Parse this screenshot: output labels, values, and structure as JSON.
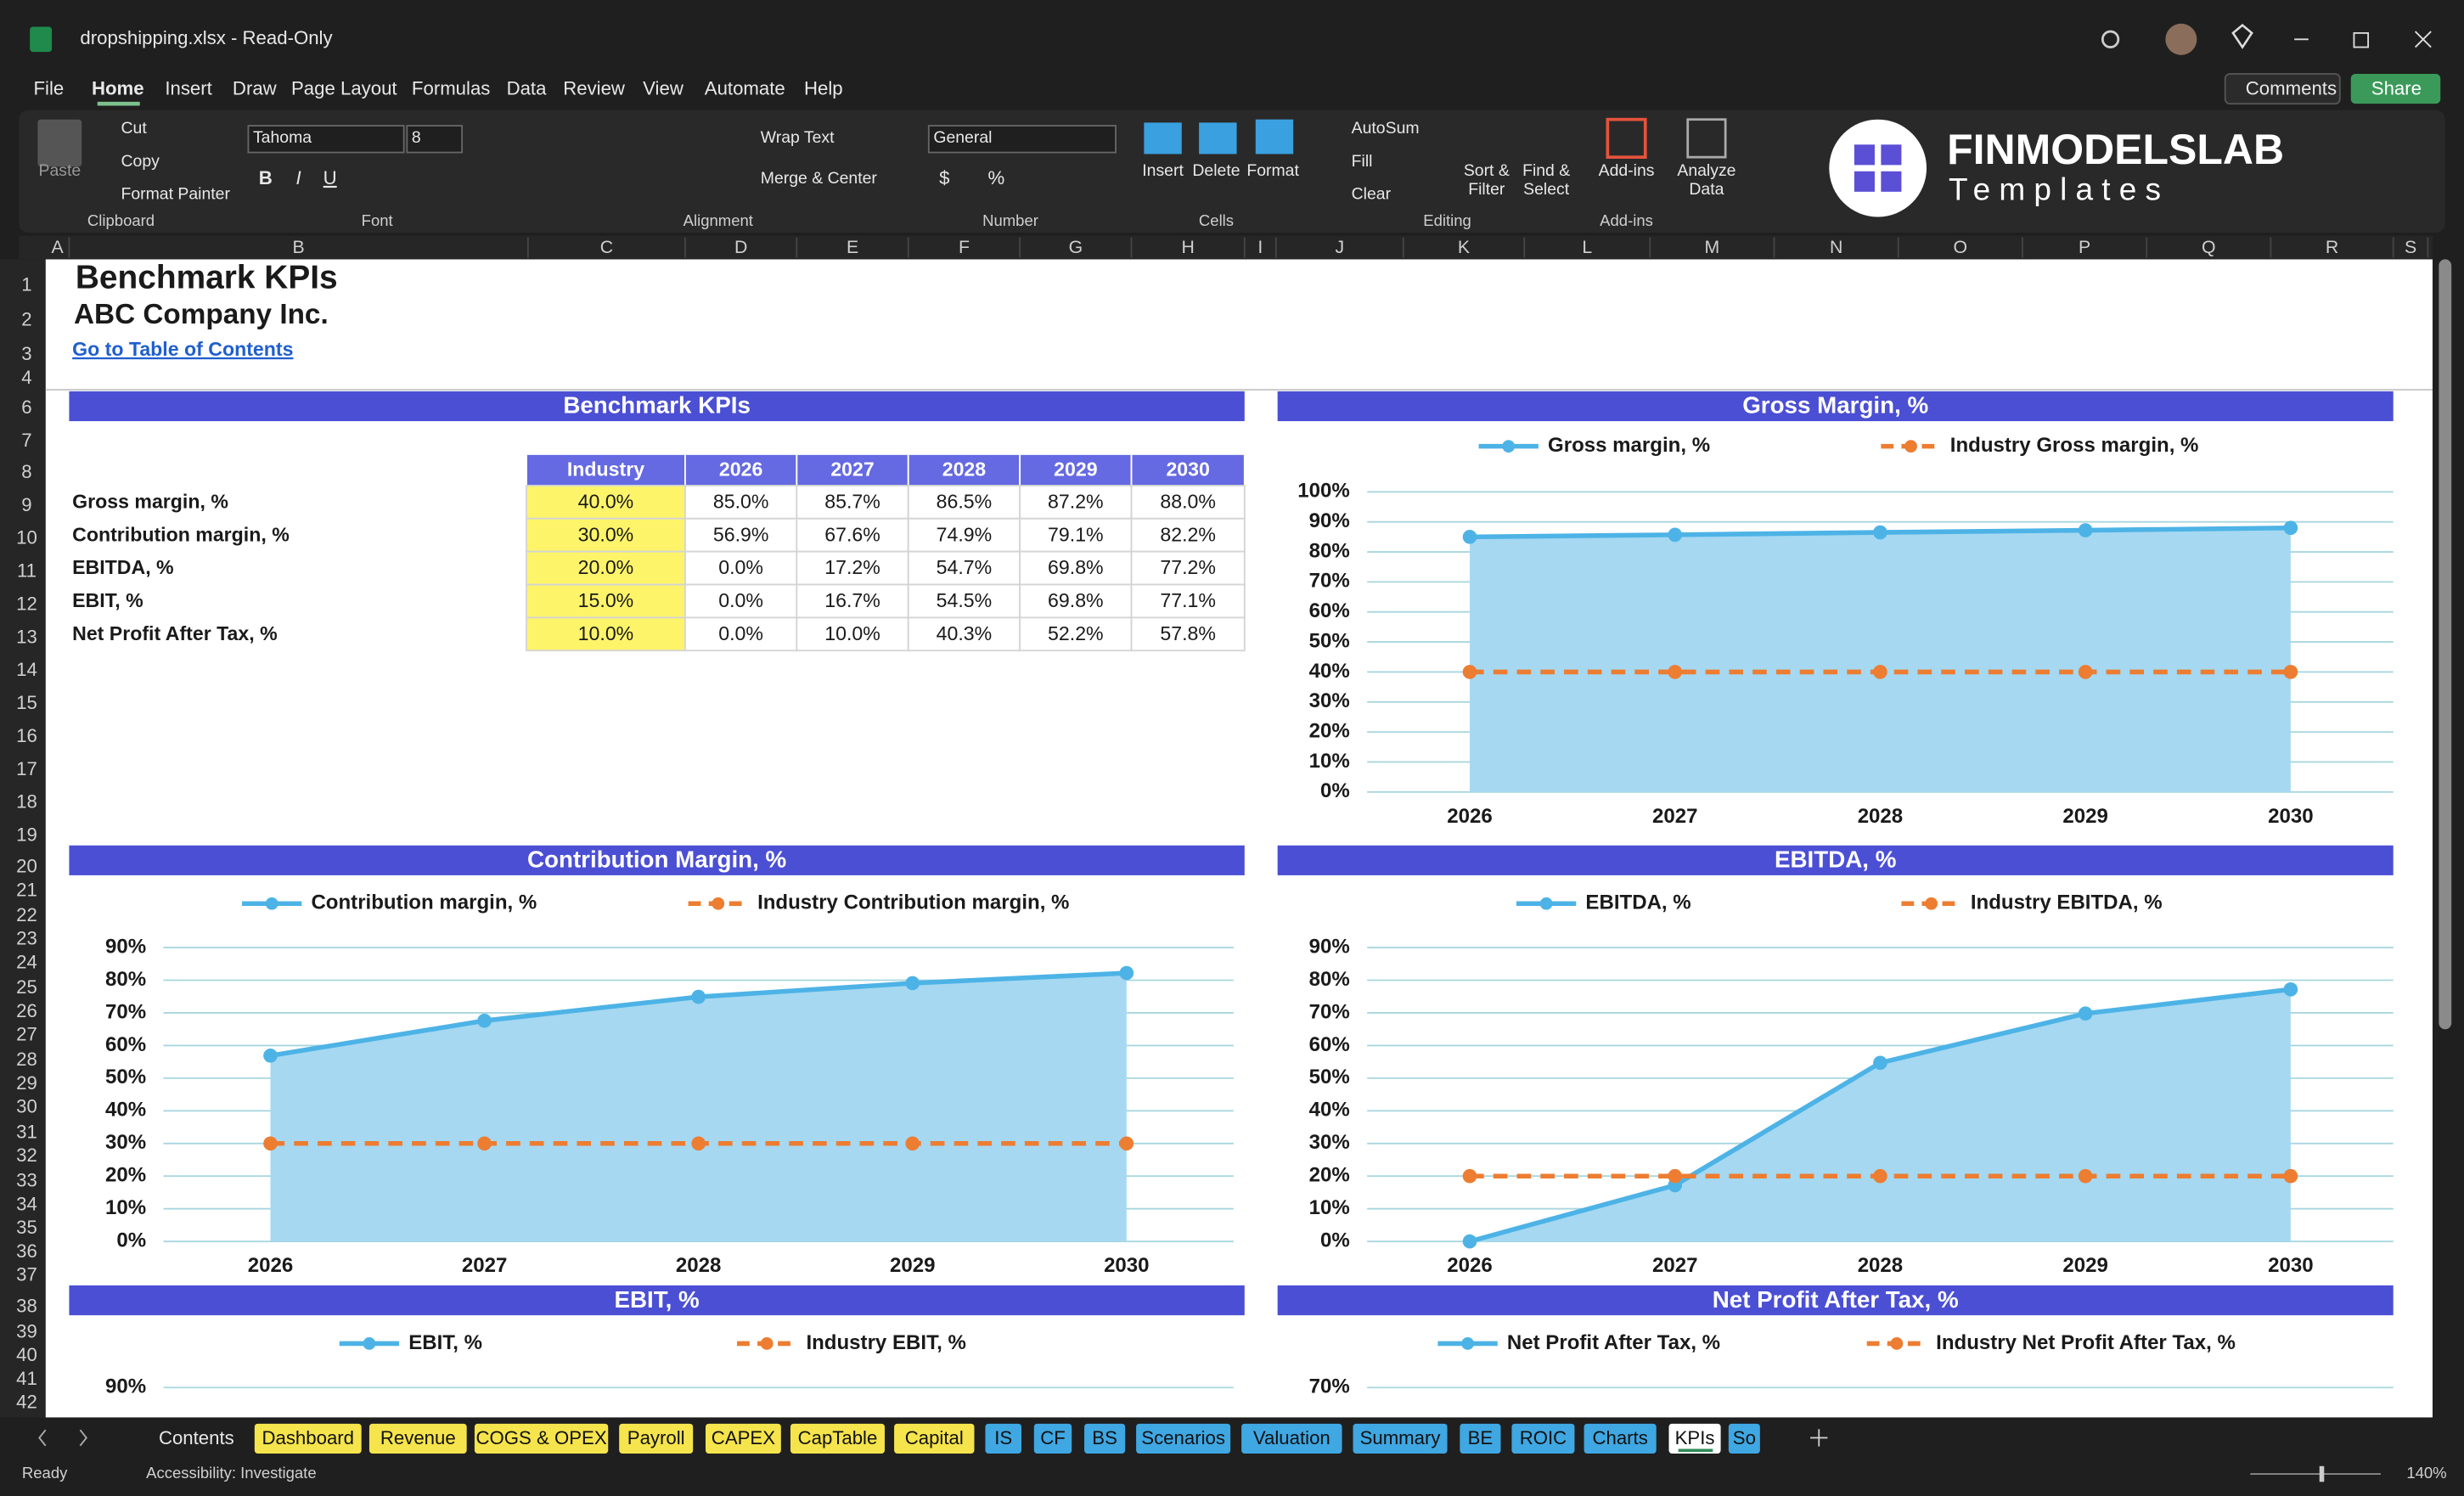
{
  "window": {
    "title": "dropshipping.xlsx - Read-Only"
  },
  "menu": [
    "File",
    "Home",
    "Insert",
    "Draw",
    "Page Layout",
    "Formulas",
    "Data",
    "Review",
    "View",
    "Automate",
    "Help"
  ],
  "buttons": [
    "Comments",
    "Share"
  ],
  "ribbon": {
    "items": [
      "Paste",
      "Cut",
      "Copy",
      "Format Painter",
      "Tahoma",
      "8",
      "Wrap Text",
      "Merge & Center",
      "General",
      "Insert",
      "Delete",
      "Format",
      "AutoSum",
      "Fill",
      "Clear",
      "Sort &",
      "Filter",
      "Find &",
      "Select",
      "Add-ins",
      "Analyze",
      "Data"
    ],
    "glyphs": [
      "B",
      "I",
      "U",
      "$",
      "%"
    ],
    "groups": [
      "Clipboard",
      "Font",
      "Alignment",
      "Number",
      "Cells",
      "Editing",
      "Add-ins"
    ]
  },
  "logo": {
    "brand": "FINMODELSLAB",
    "tagline": "Templates"
  },
  "columns": [
    "A",
    "B",
    "C",
    "D",
    "E",
    "F",
    "G",
    "H",
    "I",
    "J",
    "K",
    "L",
    "M",
    "N",
    "O",
    "P",
    "Q",
    "R",
    "S"
  ],
  "rows": [
    "1",
    "2",
    "3",
    "4",
    "6",
    "7",
    "8",
    "9",
    "10",
    "11",
    "12",
    "13",
    "14",
    "15",
    "16",
    "17",
    "18",
    "19",
    "20",
    "21",
    "22",
    "23",
    "24",
    "25",
    "26",
    "27",
    "28",
    "29",
    "30",
    "31",
    "32",
    "33",
    "34",
    "35",
    "36",
    "37",
    "38",
    "39",
    "40",
    "41",
    "42"
  ],
  "sheet": {
    "title": "Benchmark KPIs",
    "company": "ABC Company Inc.",
    "link": "Go to Table of Contents"
  },
  "table": {
    "title": "Benchmark KPIs",
    "header": [
      "Industry",
      "2026",
      "2027",
      "2028",
      "2029",
      "2030"
    ],
    "rows": [
      {
        "label": "Gross margin, %",
        "cells": [
          "40.0%",
          "85.0%",
          "85.7%",
          "86.5%",
          "87.2%",
          "88.0%"
        ]
      },
      {
        "label": "Contribution margin, %",
        "cells": [
          "30.0%",
          "56.9%",
          "67.6%",
          "74.9%",
          "79.1%",
          "82.2%"
        ]
      },
      {
        "label": "EBITDA, %",
        "cells": [
          "20.0%",
          "0.0%",
          "17.2%",
          "54.7%",
          "69.8%",
          "77.2%"
        ]
      },
      {
        "label": "EBIT, %",
        "cells": [
          "15.0%",
          "0.0%",
          "16.7%",
          "54.5%",
          "69.8%",
          "77.1%"
        ]
      },
      {
        "label": "Net Profit After Tax, %",
        "cells": [
          "10.0%",
          "0.0%",
          "10.0%",
          "40.3%",
          "52.2%",
          "57.8%"
        ]
      }
    ]
  },
  "chart_data": [
    {
      "type": "line",
      "title": "Gross Margin, %",
      "categories": [
        "2026",
        "2027",
        "2028",
        "2029",
        "2030"
      ],
      "ylim": [
        0,
        100
      ],
      "yticks": [
        {
          "value": 0,
          "label": "0%"
        },
        {
          "value": 10,
          "label": "10%"
        },
        {
          "value": 20,
          "label": "20%"
        },
        {
          "value": 30,
          "label": "30%"
        },
        {
          "value": 40,
          "label": "40%"
        },
        {
          "value": 50,
          "label": "50%"
        },
        {
          "value": 60,
          "label": "60%"
        },
        {
          "value": 70,
          "label": "70%"
        },
        {
          "value": 80,
          "label": "80%"
        },
        {
          "value": 90,
          "label": "90%"
        },
        {
          "value": 100,
          "label": "100%"
        }
      ],
      "grid": true,
      "series": [
        {
          "name": "Gross margin, %",
          "color": "#4db3e6",
          "fill": "#a6d8f1",
          "values": [
            85.0,
            85.7,
            86.5,
            87.2,
            88.0
          ]
        },
        {
          "name": "Industry Gross margin, %",
          "color": "#ed7d31",
          "dashed": true,
          "values": [
            40,
            40,
            40,
            40,
            40
          ]
        }
      ]
    },
    {
      "type": "line",
      "title": "Contribution Margin, %",
      "categories": [
        "2026",
        "2027",
        "2028",
        "2029",
        "2030"
      ],
      "ylim": [
        0,
        90
      ],
      "yticks": [
        {
          "value": 0,
          "label": "0%"
        },
        {
          "value": 10,
          "label": "10%"
        },
        {
          "value": 20,
          "label": "20%"
        },
        {
          "value": 30,
          "label": "30%"
        },
        {
          "value": 40,
          "label": "40%"
        },
        {
          "value": 50,
          "label": "50%"
        },
        {
          "value": 60,
          "label": "60%"
        },
        {
          "value": 70,
          "label": "70%"
        },
        {
          "value": 80,
          "label": "80%"
        },
        {
          "value": 90,
          "label": "90%"
        }
      ],
      "grid": true,
      "series": [
        {
          "name": "Contribution margin, %",
          "color": "#4db3e6",
          "fill": "#a6d8f1",
          "values": [
            56.9,
            67.6,
            74.9,
            79.1,
            82.2
          ]
        },
        {
          "name": "Industry Contribution margin, %",
          "color": "#ed7d31",
          "dashed": true,
          "values": [
            30,
            30,
            30,
            30,
            30
          ]
        }
      ]
    },
    {
      "type": "line",
      "title": "EBITDA, %",
      "categories": [
        "2026",
        "2027",
        "2028",
        "2029",
        "2030"
      ],
      "ylim": [
        0,
        90
      ],
      "yticks": [
        {
          "value": 0,
          "label": "0%"
        },
        {
          "value": 10,
          "label": "10%"
        },
        {
          "value": 20,
          "label": "20%"
        },
        {
          "value": 30,
          "label": "30%"
        },
        {
          "value": 40,
          "label": "40%"
        },
        {
          "value": 50,
          "label": "50%"
        },
        {
          "value": 60,
          "label": "60%"
        },
        {
          "value": 70,
          "label": "70%"
        },
        {
          "value": 80,
          "label": "80%"
        },
        {
          "value": 90,
          "label": "90%"
        }
      ],
      "grid": true,
      "series": [
        {
          "name": "EBITDA, %",
          "color": "#4db3e6",
          "fill": "#a6d8f1",
          "values": [
            0.0,
            17.2,
            54.7,
            69.8,
            77.2
          ]
        },
        {
          "name": "Industry EBITDA, %",
          "color": "#ed7d31",
          "dashed": true,
          "values": [
            20,
            20,
            20,
            20,
            20
          ]
        }
      ]
    },
    {
      "type": "line",
      "title": "EBIT, %",
      "ylim": [
        0,
        90
      ],
      "yticks": [
        {
          "value": 90,
          "label": "90%"
        }
      ],
      "grid": true,
      "series": [
        {
          "name": "EBIT, %",
          "color": "#4db3e6"
        },
        {
          "name": "Industry EBIT, %",
          "color": "#ed7d31",
          "dashed": true
        }
      ]
    },
    {
      "type": "line",
      "title": "Net Profit After Tax, %",
      "ylim": [
        0,
        70
      ],
      "yticks": [
        {
          "value": 70,
          "label": "70%"
        }
      ],
      "grid": true,
      "series": [
        {
          "name": "Net Profit After Tax, %",
          "color": "#4db3e6"
        },
        {
          "name": "Industry Net Profit After Tax, %",
          "color": "#ed7d31",
          "dashed": true
        }
      ]
    }
  ],
  "tabs": [
    {
      "name": "Contents"
    },
    {
      "name": "Dashboard",
      "color": "#f5e44c"
    },
    {
      "name": "Revenue",
      "color": "#f5e44c"
    },
    {
      "name": "COGS & OPEX",
      "color": "#f5e44c"
    },
    {
      "name": "Payroll",
      "color": "#f5e44c"
    },
    {
      "name": "CAPEX",
      "color": "#f5e44c"
    },
    {
      "name": "CapTable",
      "color": "#f5e44c"
    },
    {
      "name": "Capital",
      "color": "#f5e44c"
    },
    {
      "name": "IS",
      "color": "#3fa7e2"
    },
    {
      "name": "CF",
      "color": "#3fa7e2"
    },
    {
      "name": "BS",
      "color": "#3fa7e2"
    },
    {
      "name": "Scenarios",
      "color": "#3fa7e2"
    },
    {
      "name": "Valuation",
      "color": "#3fa7e2"
    },
    {
      "name": "Summary",
      "color": "#3fa7e2"
    },
    {
      "name": "BE",
      "color": "#3fa7e2"
    },
    {
      "name": "ROIC",
      "color": "#3fa7e2"
    },
    {
      "name": "Charts",
      "color": "#3fa7e2"
    },
    {
      "name": "KPIs",
      "color": "#ffffff"
    },
    {
      "name": "So",
      "color": "#3fa7e2"
    }
  ],
  "status": {
    "ready": "Ready",
    "accessibility": "Accessibility: Investigate",
    "zoom": "140%"
  }
}
